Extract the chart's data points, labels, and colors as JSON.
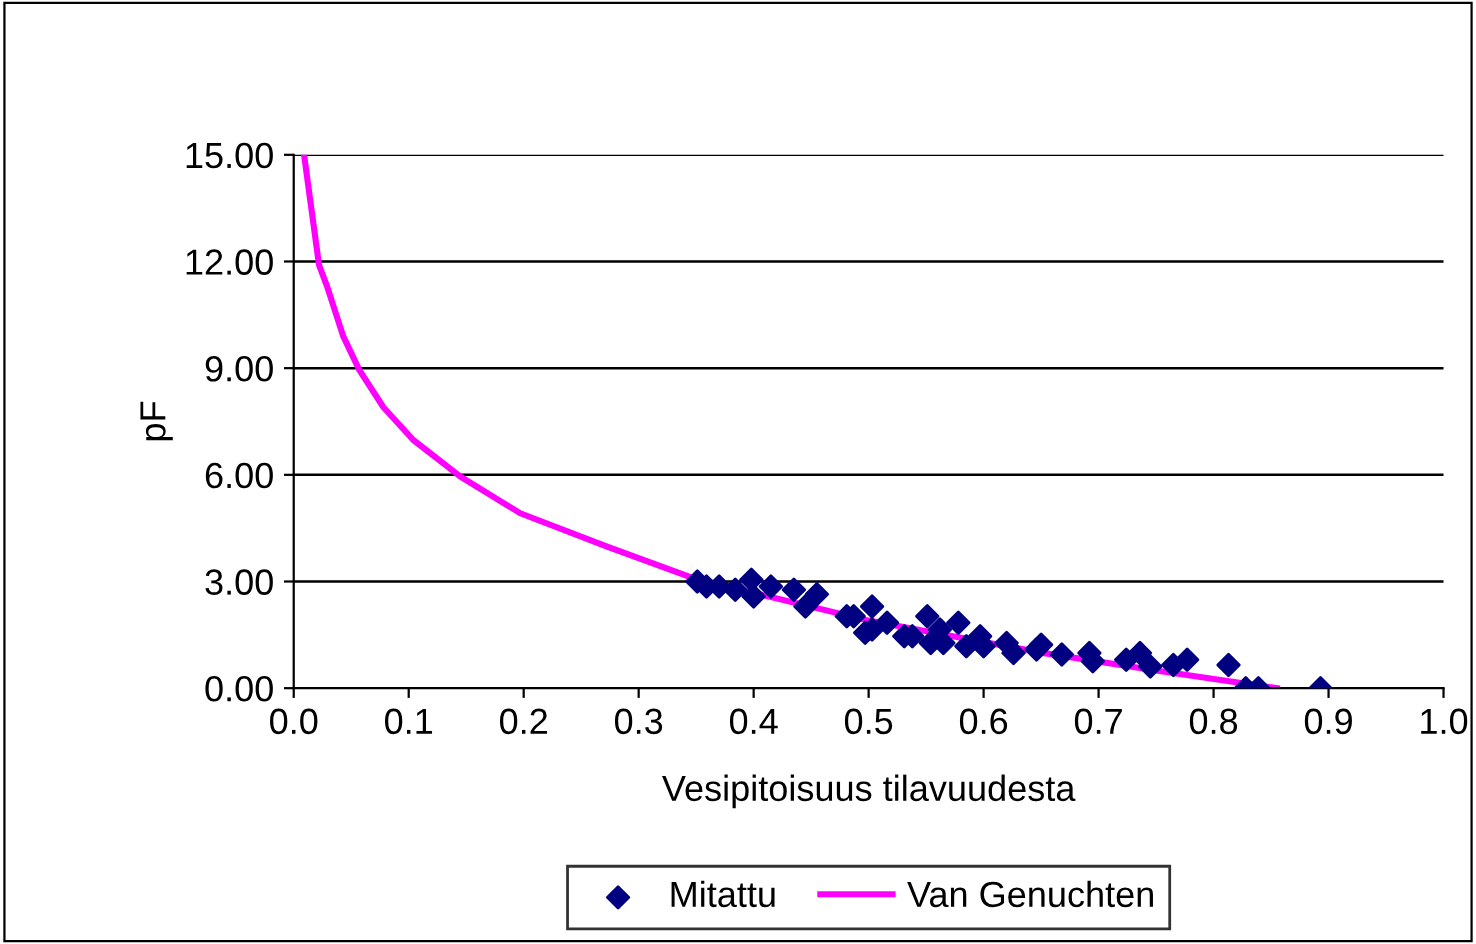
{
  "chart_data": {
    "type": "scatter",
    "xlabel": "Vesipitoisuus tilavuudesta",
    "ylabel": "pF",
    "xlim": [
      0,
      1
    ],
    "xticks": [
      {
        "value": 0,
        "label": "0.0"
      },
      {
        "value": 0.1,
        "label": "0.1"
      },
      {
        "value": 0.2,
        "label": "0.2"
      },
      {
        "value": 0.3,
        "label": "0.3"
      },
      {
        "value": 0.4,
        "label": "0.4"
      },
      {
        "value": 0.5,
        "label": "0.5"
      },
      {
        "value": 0.6,
        "label": "0.6"
      },
      {
        "value": 0.7,
        "label": "0.7"
      },
      {
        "value": 0.8,
        "label": "0.8"
      },
      {
        "value": 0.9,
        "label": "0.9"
      },
      {
        "value": 1,
        "label": "1.0"
      }
    ],
    "ylim": [
      0,
      15
    ],
    "yticks": [
      {
        "value": 0,
        "label": "0.00"
      },
      {
        "value": 3,
        "label": "3.00"
      },
      {
        "value": 6,
        "label": "6.00"
      },
      {
        "value": 9,
        "label": "9.00"
      },
      {
        "value": 12,
        "label": "12.00"
      },
      {
        "value": 15,
        "label": "15.00"
      }
    ],
    "grid": "y",
    "legend": "bottom",
    "series": [
      {
        "name": "Mitattu",
        "marker": "diamond",
        "color": "#000080",
        "x": [
          0.351,
          0.359,
          0.37,
          0.384,
          0.398,
          0.4,
          0.415,
          0.435,
          0.445,
          0.455,
          0.481,
          0.487,
          0.497,
          0.503,
          0.503,
          0.516,
          0.531,
          0.538,
          0.551,
          0.554,
          0.562,
          0.565,
          0.578,
          0.585,
          0.597,
          0.6,
          0.62,
          0.626,
          0.646,
          0.65,
          0.668,
          0.692,
          0.695,
          0.724,
          0.736,
          0.745,
          0.765,
          0.777,
          0.813,
          0.828,
          0.839,
          0.893
        ],
        "values": [
          3.0,
          2.86,
          2.86,
          2.77,
          3.05,
          2.58,
          2.86,
          2.77,
          2.3,
          2.64,
          2.02,
          2.02,
          1.56,
          2.3,
          1.65,
          1.84,
          1.46,
          1.46,
          2.02,
          1.27,
          1.65,
          1.27,
          1.84,
          1.18,
          1.46,
          1.18,
          1.27,
          0.99,
          1.09,
          1.22,
          0.95,
          0.99,
          0.76,
          0.8,
          0.99,
          0.61,
          0.65,
          0.8,
          0.65,
          0,
          0,
          0
        ]
      },
      {
        "name": "Van Genuchten",
        "type": "line",
        "marker": "none",
        "color": "#ff00ff",
        "x": [
          0.009,
          0.022,
          0.029,
          0.043,
          0.057,
          0.078,
          0.104,
          0.145,
          0.197,
          0.272,
          0.348,
          0.5,
          0.65,
          0.75,
          0.855
        ],
        "values": [
          15.0,
          11.9,
          11.3,
          9.9,
          8.95,
          7.9,
          6.98,
          5.95,
          4.92,
          3.99,
          3.09,
          1.9,
          1.0,
          0.5,
          0
        ]
      }
    ]
  }
}
